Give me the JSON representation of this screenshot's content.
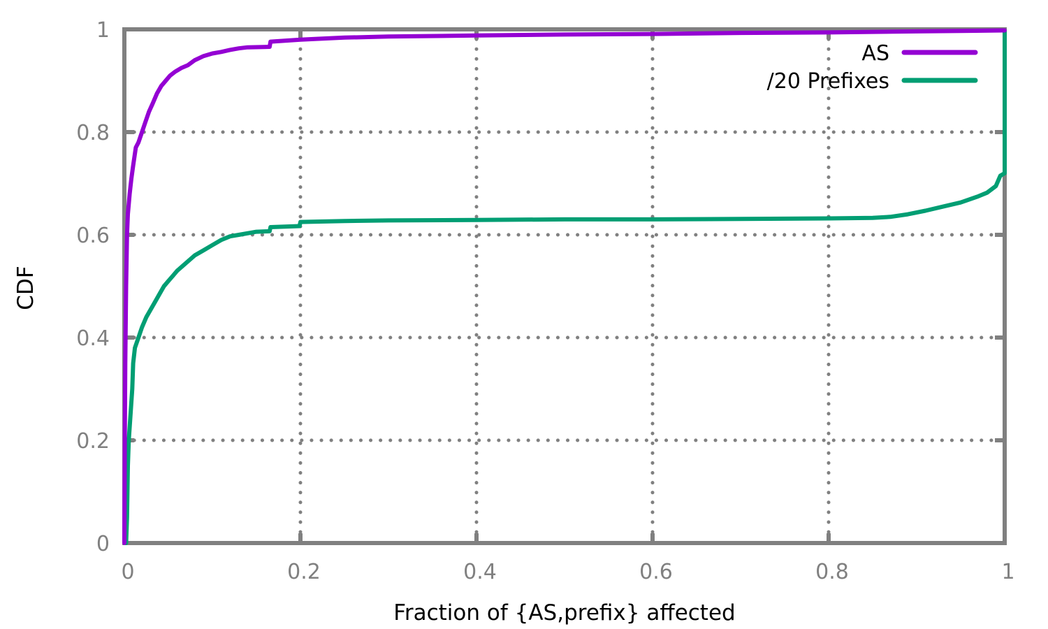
{
  "chart_data": {
    "type": "line",
    "title": "",
    "xlabel": "Fraction of {AS,prefix} affected",
    "ylabel": "CDF",
    "xlim": [
      0,
      1
    ],
    "ylim": [
      0,
      1
    ],
    "xticks": [
      {
        "value": 0,
        "label": "0"
      },
      {
        "value": 0.2,
        "label": "0.2"
      },
      {
        "value": 0.4,
        "label": "0.4"
      },
      {
        "value": 0.6,
        "label": "0.6"
      },
      {
        "value": 0.8,
        "label": "0.8"
      },
      {
        "value": 1,
        "label": "1"
      }
    ],
    "yticks": [
      {
        "value": 0,
        "label": "0"
      },
      {
        "value": 0.2,
        "label": "0.2"
      },
      {
        "value": 0.4,
        "label": "0.4"
      },
      {
        "value": 0.6,
        "label": "0.6"
      },
      {
        "value": 0.8,
        "label": "0.8"
      },
      {
        "value": 1,
        "label": "1"
      }
    ],
    "grid": true,
    "legend_position": "top-right",
    "series": [
      {
        "name": "AS",
        "color": "#9400d3",
        "points": [
          [
            0,
            0
          ],
          [
            0.0005,
            0.2
          ],
          [
            0.001,
            0.35
          ],
          [
            0.002,
            0.5
          ],
          [
            0.003,
            0.6
          ],
          [
            0.004,
            0.64
          ],
          [
            0.006,
            0.68
          ],
          [
            0.008,
            0.71
          ],
          [
            0.01,
            0.735
          ],
          [
            0.013,
            0.77
          ],
          [
            0.016,
            0.78
          ],
          [
            0.02,
            0.8
          ],
          [
            0.024,
            0.82
          ],
          [
            0.028,
            0.84
          ],
          [
            0.032,
            0.855
          ],
          [
            0.037,
            0.875
          ],
          [
            0.042,
            0.89
          ],
          [
            0.047,
            0.9
          ],
          [
            0.052,
            0.91
          ],
          [
            0.058,
            0.918
          ],
          [
            0.065,
            0.925
          ],
          [
            0.072,
            0.93
          ],
          [
            0.08,
            0.94
          ],
          [
            0.09,
            0.948
          ],
          [
            0.1,
            0.953
          ],
          [
            0.11,
            0.956
          ],
          [
            0.12,
            0.96
          ],
          [
            0.13,
            0.963
          ],
          [
            0.14,
            0.965
          ],
          [
            0.165,
            0.966
          ],
          [
            0.166,
            0.976
          ],
          [
            0.2,
            0.98
          ],
          [
            0.25,
            0.984
          ],
          [
            0.3,
            0.986
          ],
          [
            0.4,
            0.988
          ],
          [
            0.5,
            0.99
          ],
          [
            0.6,
            0.991
          ],
          [
            0.7,
            0.993
          ],
          [
            0.8,
            0.994
          ],
          [
            0.9,
            0.996
          ],
          [
            0.95,
            0.997
          ],
          [
            1.0,
            0.998
          ]
        ]
      },
      {
        "name": "/20 Prefixes",
        "color": "#009e73",
        "points": [
          [
            0.002,
            0
          ],
          [
            0.003,
            0.05
          ],
          [
            0.004,
            0.15
          ],
          [
            0.005,
            0.2
          ],
          [
            0.007,
            0.25
          ],
          [
            0.009,
            0.3
          ],
          [
            0.01,
            0.35
          ],
          [
            0.012,
            0.38
          ],
          [
            0.016,
            0.4
          ],
          [
            0.02,
            0.42
          ],
          [
            0.025,
            0.44
          ],
          [
            0.03,
            0.455
          ],
          [
            0.035,
            0.47
          ],
          [
            0.04,
            0.485
          ],
          [
            0.045,
            0.5
          ],
          [
            0.05,
            0.51
          ],
          [
            0.055,
            0.52
          ],
          [
            0.06,
            0.53
          ],
          [
            0.07,
            0.545
          ],
          [
            0.08,
            0.56
          ],
          [
            0.09,
            0.57
          ],
          [
            0.1,
            0.58
          ],
          [
            0.11,
            0.59
          ],
          [
            0.12,
            0.597
          ],
          [
            0.13,
            0.6
          ],
          [
            0.15,
            0.606
          ],
          [
            0.165,
            0.607
          ],
          [
            0.166,
            0.615
          ],
          [
            0.199,
            0.617
          ],
          [
            0.2,
            0.625
          ],
          [
            0.25,
            0.627
          ],
          [
            0.3,
            0.628
          ],
          [
            0.4,
            0.629
          ],
          [
            0.5,
            0.63
          ],
          [
            0.6,
            0.63
          ],
          [
            0.7,
            0.631
          ],
          [
            0.8,
            0.632
          ],
          [
            0.85,
            0.633
          ],
          [
            0.87,
            0.635
          ],
          [
            0.89,
            0.64
          ],
          [
            0.91,
            0.647
          ],
          [
            0.93,
            0.655
          ],
          [
            0.95,
            0.663
          ],
          [
            0.97,
            0.675
          ],
          [
            0.98,
            0.682
          ],
          [
            0.99,
            0.695
          ],
          [
            0.995,
            0.715
          ],
          [
            1.0,
            0.72
          ],
          [
            1.0,
            0.998
          ]
        ]
      }
    ]
  }
}
